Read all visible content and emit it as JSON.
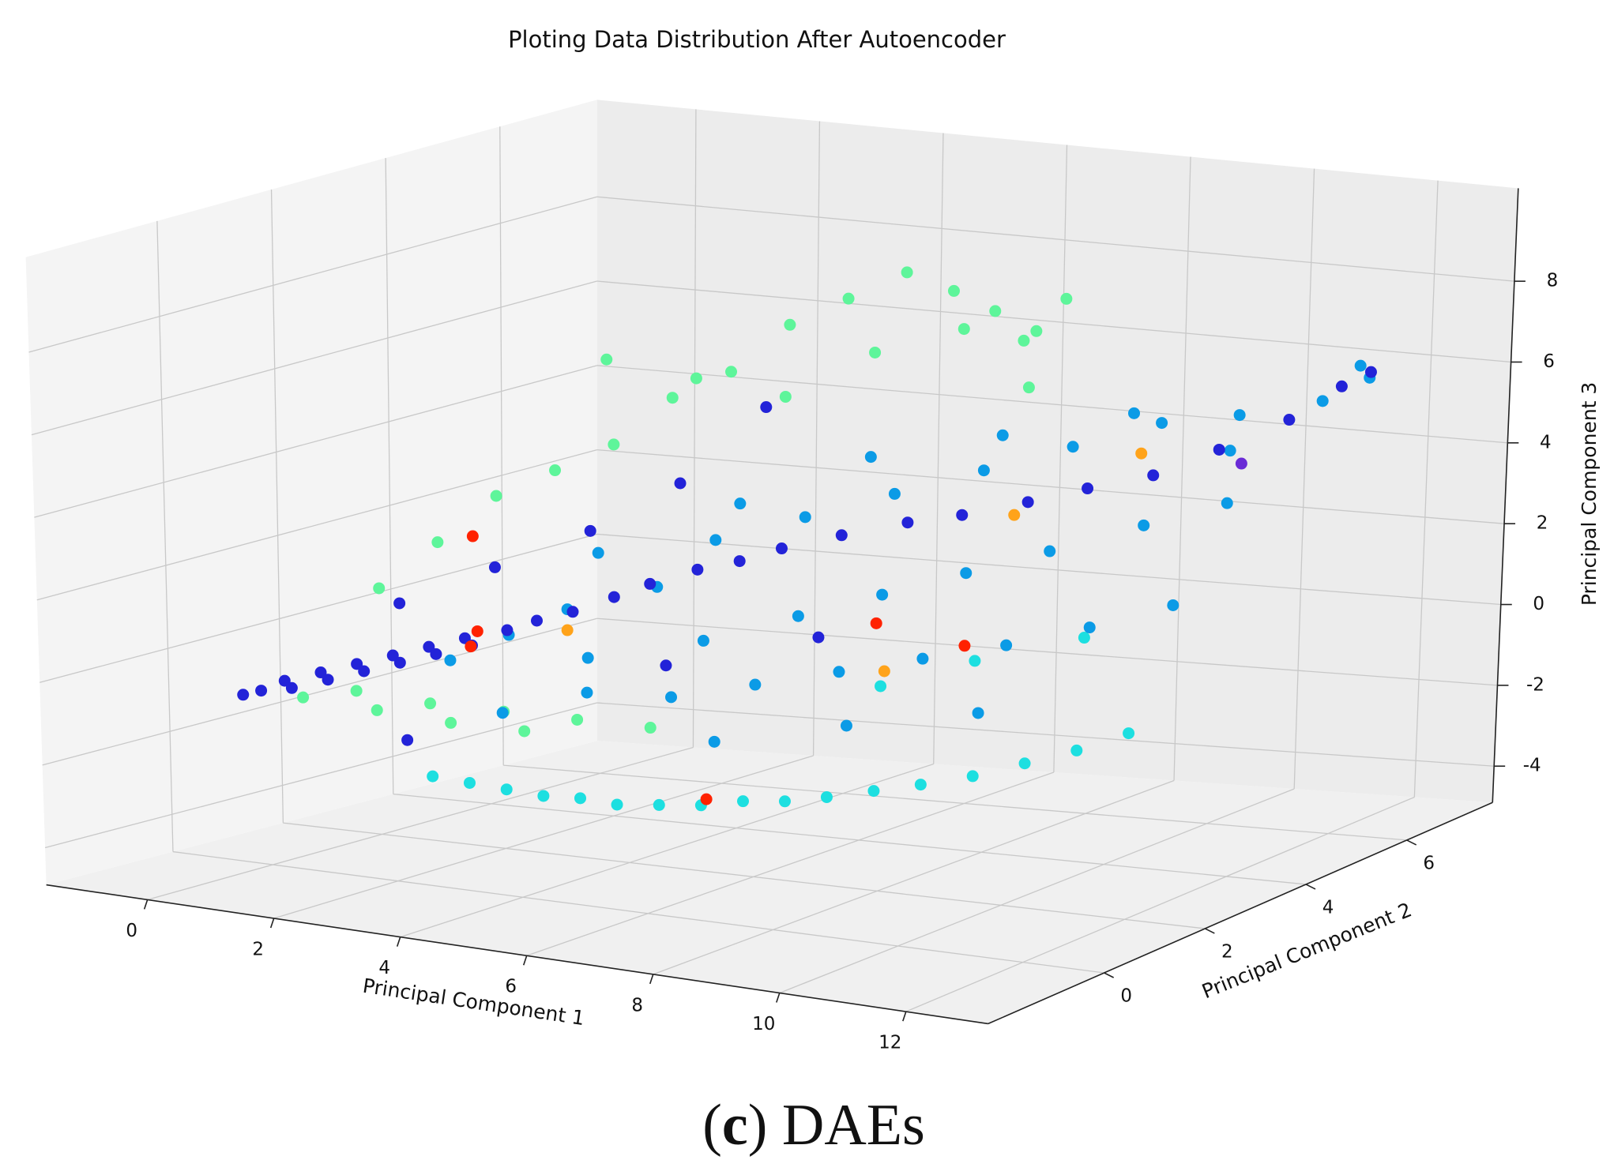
{
  "chart_data": {
    "type": "scatter3d",
    "title": "Ploting Data Distribution After Autoencoder",
    "xlabel": "Principal Component 1",
    "ylabel": "Principal Component 2",
    "zlabel": "Principal Component 3",
    "caption": [
      "(",
      "c",
      ") DAEs"
    ],
    "xlim": [
      -1.6,
      13.3
    ],
    "ylim": [
      -2.3,
      7.7
    ],
    "zlim": [
      -4.9,
      10.3
    ],
    "xticks": [
      0,
      2,
      4,
      6,
      8,
      10,
      12
    ],
    "yticks": [
      0,
      2,
      4,
      6
    ],
    "zticks": [
      -4,
      -2,
      0,
      2,
      4,
      6,
      8
    ],
    "grid": true,
    "series": [
      {
        "color": "#1ddfe0",
        "x": [
          3,
          3.5,
          4,
          4.5,
          5,
          5.5,
          6,
          6.5,
          7,
          7.5,
          8,
          8.5,
          9,
          9.5,
          10,
          10.5,
          11,
          8,
          9,
          10
        ],
        "y": [
          -0.5,
          -0.4,
          -0.3,
          -0.2,
          -0.1,
          0,
          0.2,
          0.4,
          0.6,
          0.8,
          1,
          1.3,
          1.6,
          2,
          2.4,
          2.8,
          3.2,
          2,
          2.6,
          3.5
        ],
        "z": [
          -2,
          -2.1,
          -2.2,
          -2.3,
          -2.3,
          -2.4,
          -2.4,
          -2.4,
          -2.3,
          -2.3,
          -2.2,
          -2.1,
          -2,
          -1.9,
          -1.7,
          -1.5,
          -1.2,
          0,
          0.5,
          0.8
        ]
      },
      {
        "color": "#5ef59a",
        "x": [
          0,
          0.5,
          1,
          1.5,
          2,
          2.5,
          3,
          3.5,
          4,
          4.5,
          5,
          5.5,
          6,
          1,
          2,
          3,
          4,
          5,
          0.5,
          1.5,
          2.5,
          3.5,
          4.5,
          0,
          1,
          2,
          3,
          6.5,
          7,
          7.5
        ],
        "y": [
          2,
          2.5,
          3,
          3.5,
          4,
          4.5,
          5,
          5.5,
          6,
          6.5,
          6.8,
          7,
          7.2,
          5,
          5.5,
          6,
          6.5,
          7,
          1,
          1.2,
          1.4,
          1.6,
          1.8,
          0.6,
          0.8,
          1,
          1.2,
          6.5,
          5.8,
          6
        ],
        "z": [
          1,
          2,
          3,
          3.5,
          4,
          5,
          5.5,
          6.5,
          7,
          7.5,
          7,
          6.5,
          6,
          5.5,
          5,
          4.5,
          5.5,
          6,
          -1,
          -1.2,
          -1.3,
          -1.4,
          -1.5,
          -1.1,
          -1.3,
          -1.5,
          -1.6,
          5,
          6.5,
          7.5
        ]
      },
      {
        "color": "#0b9be6",
        "x": [
          2,
          2.5,
          3,
          3.5,
          4,
          4.5,
          5,
          5.5,
          6,
          6.5,
          7,
          7.5,
          8,
          8.5,
          9,
          9.5,
          10,
          10.5,
          11,
          11.5,
          12,
          3,
          4,
          5,
          6,
          7,
          8,
          9,
          10,
          11,
          2.8,
          4.2,
          5.6,
          7.2,
          8.8,
          10.2,
          11.6,
          6.2,
          7.8,
          9.4
        ],
        "y": [
          1,
          1.5,
          2,
          1.8,
          2.5,
          3,
          2.2,
          3.5,
          2.8,
          4,
          3.2,
          4.5,
          3.6,
          5,
          4,
          5.5,
          4.6,
          5.8,
          5,
          6.2,
          6.5,
          0.8,
          1.2,
          1.6,
          2,
          2.4,
          2.8,
          3.2,
          3.6,
          4,
          2.8,
          3.8,
          4.6,
          5.2,
          5.8,
          6,
          6.8,
          1,
          1.6,
          2.2
        ],
        "z": [
          0,
          0.5,
          1,
          0,
          1.5,
          2.5,
          0.5,
          3,
          1,
          3.5,
          1.5,
          4,
          2,
          4.5,
          2.5,
          5,
          3,
          5.2,
          3.5,
          5.5,
          6,
          -1,
          -0.5,
          -0.6,
          -0.3,
          0,
          0.3,
          0.6,
          1,
          1.5,
          2,
          3,
          4,
          4.5,
          5,
          4.2,
          6.1,
          -1.2,
          -0.8,
          -0.5
        ]
      },
      {
        "color": "#2323d8",
        "x": [
          -0.6,
          -0.4,
          -0.2,
          0,
          0.2,
          0.4,
          0.6,
          0.8,
          1,
          1.2,
          1.4,
          1.6,
          1.8,
          2,
          2.3,
          2.6,
          3,
          3.4,
          3.8,
          4.3,
          4.8,
          5.3,
          6,
          6.8,
          7.5,
          8.3,
          9,
          9.8,
          10.6,
          11.3,
          11.8,
          12.1,
          0.5,
          1.5,
          2.5,
          3.5,
          5,
          7,
          2,
          4
        ],
        "y": [
          0.2,
          0.3,
          0.5,
          0.4,
          0.7,
          0.6,
          0.9,
          0.8,
          1.1,
          1,
          1.3,
          1.2,
          1.5,
          1.4,
          1.7,
          1.9,
          2.1,
          2.4,
          2.6,
          2.9,
          3.1,
          3.3,
          3.6,
          3.9,
          4.1,
          4.4,
          4.7,
          5,
          5.3,
          5.8,
          6.2,
          6.4,
          1.8,
          2.4,
          3,
          3.5,
          1.5,
          2,
          0.2,
          4.5
        ],
        "z": [
          -1,
          -0.9,
          -0.7,
          -0.8,
          -0.5,
          -0.6,
          -0.3,
          -0.4,
          -0.1,
          -0.2,
          0.1,
          0,
          0.3,
          0.2,
          0.5,
          0.7,
          0.9,
          1.2,
          1.5,
          1.8,
          2,
          2.3,
          2.6,
          2.9,
          3.1,
          3.4,
          3.7,
          4,
          4.6,
          5.2,
          5.9,
          6.2,
          0.8,
          1.6,
          2.4,
          3.5,
          0.2,
          1,
          -1.6,
          5
        ]
      },
      {
        "color": "#ff2200",
        "x": [
          1.5,
          2,
          6.5,
          8.5,
          7.5,
          2.5
        ],
        "y": [
          2,
          1.5,
          0.5,
          3,
          2.5,
          0.8
        ],
        "z": [
          2.5,
          0.5,
          -2.3,
          0.6,
          1.2,
          0.5
        ]
      },
      {
        "color": "#ffa31a",
        "x": [
          8,
          3,
          6.8,
          9.6
        ],
        "y": [
          4.5,
          2,
          3.5,
          5
        ],
        "z": [
          3,
          0.5,
          -0.5,
          4.5
        ]
      },
      {
        "color": "#6a2bd6",
        "x": [
          10.8
        ],
        "y": [
          5.5
        ],
        "z": [
          4.2
        ]
      }
    ]
  }
}
